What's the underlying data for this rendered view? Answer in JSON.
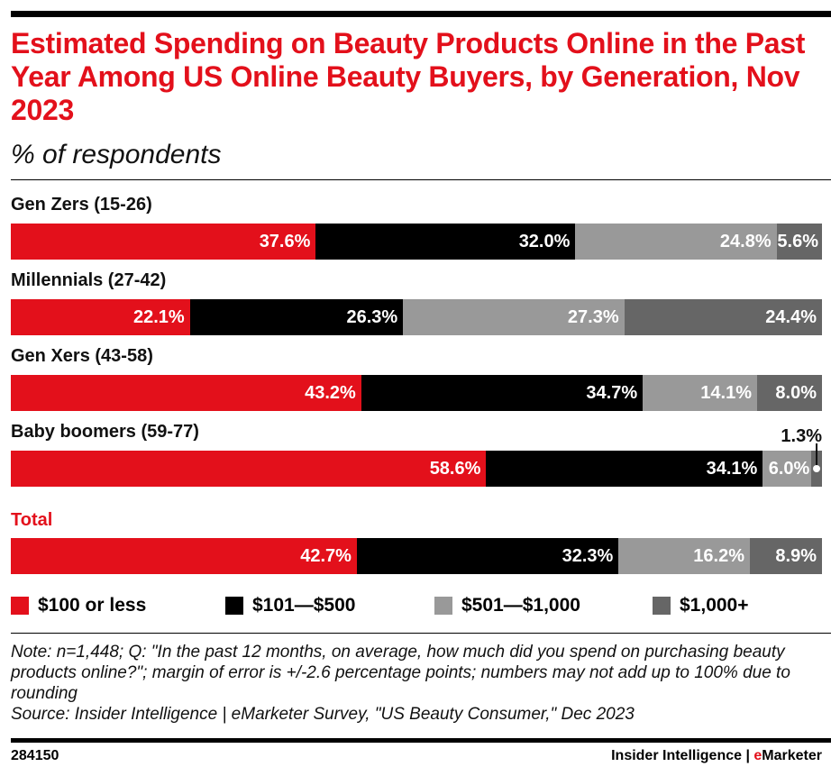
{
  "chart_data": {
    "type": "bar",
    "orientation": "horizontal-stacked-100",
    "title": "Estimated Spending on Beauty Products Online in the Past Year Among US Online Beauty Buyers, by Generation, Nov 2023",
    "subtitle": "% of respondents",
    "categories": [
      "Gen Zers (15-26)",
      "Millennials (27-42)",
      "Gen Xers (43-58)",
      "Baby boomers (59-77)",
      "Total"
    ],
    "series": [
      {
        "name": "$100 or less",
        "color": "#e3101b",
        "values": [
          37.6,
          22.1,
          43.2,
          58.6,
          42.7
        ]
      },
      {
        "name": "$101—$500",
        "color": "#000000",
        "values": [
          32.0,
          26.3,
          34.7,
          34.1,
          32.3
        ]
      },
      {
        "name": "$501—$1,000",
        "color": "#999999",
        "values": [
          24.8,
          27.3,
          14.1,
          6.0,
          16.2
        ]
      },
      {
        "name": "$1,000+",
        "color": "#666666",
        "values": [
          5.6,
          24.4,
          8.0,
          1.3,
          8.9
        ]
      }
    ],
    "legend_position": "bottom",
    "grid": false
  },
  "note": "Note: n=1,448; Q: \"In the past 12 months, on average, how much did you spend on purchasing beauty products online?\"; margin of error is +/-2.6 percentage points; numbers may not add up to 100% due to rounding",
  "source": "Source: Insider Intelligence | eMarketer Survey, \"US Beauty Consumer,\" Dec 2023",
  "footer": {
    "id": "284150",
    "brand_prefix": "Insider Intelligence | ",
    "brand_e": "e",
    "brand_rest": "Marketer"
  }
}
